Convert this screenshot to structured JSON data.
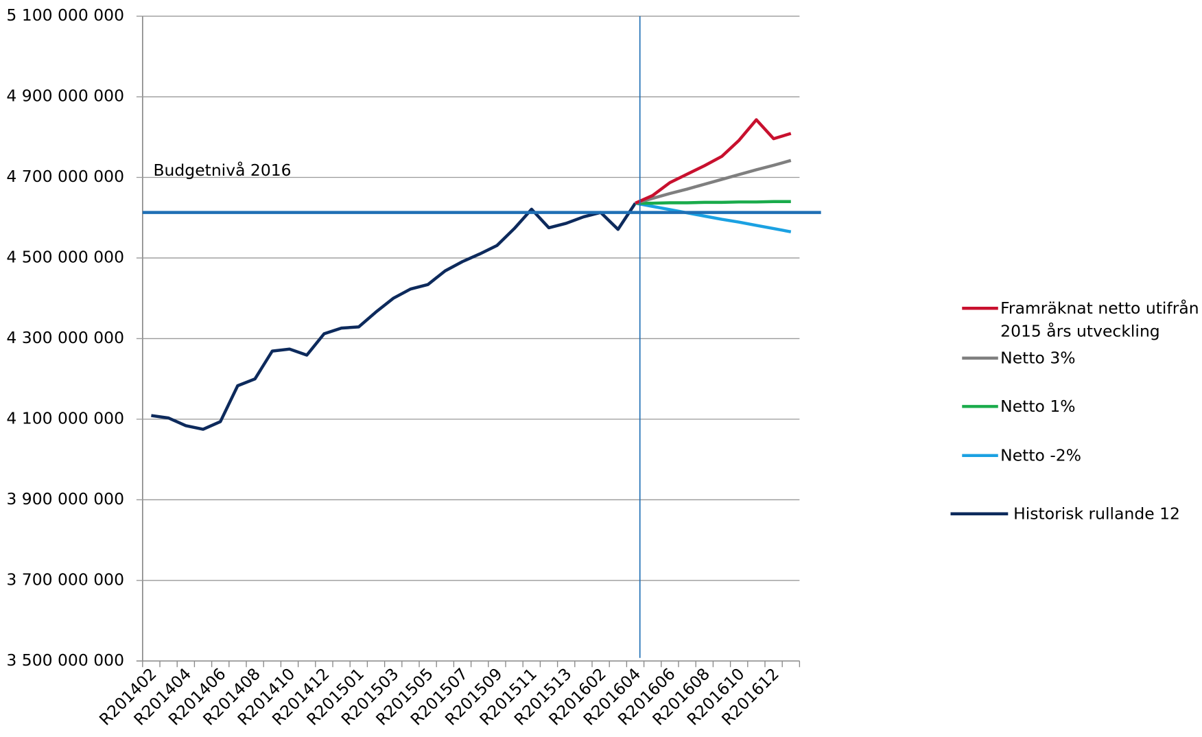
{
  "chart_data": {
    "type": "line",
    "categories": [
      "R201402",
      null,
      "R201404",
      null,
      "R201406",
      null,
      "R201408",
      null,
      "R201410",
      null,
      "R201412",
      null,
      "R201501",
      null,
      "R201503",
      null,
      "R201505",
      null,
      "R201507",
      null,
      "R201509",
      null,
      "R201511",
      null,
      "R201513",
      null,
      "R201602",
      null,
      "R201604",
      null,
      "R201606",
      null,
      "R201608",
      null,
      "R201610",
      null,
      "R201612",
      null
    ],
    "series": [
      {
        "name": "Framräknat netto utifrån 2015 års utveckling",
        "color": "#c8102e",
        "values": [
          null,
          null,
          null,
          null,
          null,
          null,
          null,
          null,
          null,
          null,
          null,
          null,
          null,
          null,
          null,
          null,
          null,
          null,
          null,
          null,
          null,
          null,
          null,
          null,
          null,
          null,
          null,
          null,
          4636000000,
          4655000000,
          4687000000,
          4708000000,
          4729000000,
          4752000000,
          4792000000,
          4843000000,
          4796000000,
          4809000000
        ]
      },
      {
        "name": "Netto 3%",
        "color": "#7f7f7f",
        "values": [
          null,
          null,
          null,
          null,
          null,
          null,
          null,
          null,
          null,
          null,
          null,
          null,
          null,
          null,
          null,
          null,
          null,
          null,
          null,
          null,
          null,
          null,
          null,
          null,
          null,
          null,
          null,
          null,
          4636000000,
          4648000000,
          4660000000,
          4671000000,
          4683000000,
          4695000000,
          4707000000,
          4719000000,
          4730000000,
          4742000000
        ]
      },
      {
        "name": "Netto 1%",
        "color": "#1aab4b",
        "values": [
          null,
          null,
          null,
          null,
          null,
          null,
          null,
          null,
          null,
          null,
          null,
          null,
          null,
          null,
          null,
          null,
          null,
          null,
          null,
          null,
          null,
          null,
          null,
          null,
          null,
          null,
          null,
          null,
          4636000000,
          4636000000,
          4637000000,
          4637000000,
          4638000000,
          4638000000,
          4639000000,
          4639000000,
          4640000000,
          4640000000
        ]
      },
      {
        "name": "Netto -2%",
        "color": "#1ba1e2",
        "values": [
          null,
          null,
          null,
          null,
          null,
          null,
          null,
          null,
          null,
          null,
          null,
          null,
          null,
          null,
          null,
          null,
          null,
          null,
          null,
          null,
          null,
          null,
          null,
          null,
          null,
          null,
          null,
          null,
          4636000000,
          4628000000,
          4620000000,
          4612000000,
          4604000000,
          4596000000,
          4589000000,
          4581000000,
          4573000000,
          4565000000
        ]
      },
      {
        "name": "Historisk rullande 12",
        "color": "#0d2a5c",
        "values": [
          4109000000,
          4103000000,
          4084000000,
          4075000000,
          4094000000,
          4183000000,
          4200000000,
          4269000000,
          4274000000,
          4259000000,
          4312000000,
          4326000000,
          4329000000,
          4366000000,
          4400000000,
          4423000000,
          4434000000,
          4468000000,
          4491000000,
          4510000000,
          4531000000,
          4573000000,
          4621000000,
          4575000000,
          4586000000,
          4602000000,
          4613000000,
          4571000000,
          4636000000,
          null,
          null,
          null,
          null,
          null,
          null,
          null,
          null,
          null
        ]
      }
    ],
    "budget_line": {
      "label": "Budgetnivå 2016",
      "value": 4613000000,
      "color": "#1f6fb5"
    },
    "ylim": [
      3500000000,
      5100000000
    ],
    "yticks": [
      {
        "value": 3500000000,
        "label": "3 500 000 000"
      },
      {
        "value": 3700000000,
        "label": "3 700 000 000"
      },
      {
        "value": 3900000000,
        "label": "3 900 000 000"
      },
      {
        "value": 4100000000,
        "label": "4 100 000 000"
      },
      {
        "value": 4300000000,
        "label": "4 300 000 000"
      },
      {
        "value": 4500000000,
        "label": "4 500 000 000"
      },
      {
        "value": 4700000000,
        "label": "4 700 000 000"
      },
      {
        "value": 4900000000,
        "label": "4 900 000 000"
      },
      {
        "value": 5100000000,
        "label": "5 100 000 000"
      }
    ],
    "grid": true,
    "legend": "right"
  }
}
